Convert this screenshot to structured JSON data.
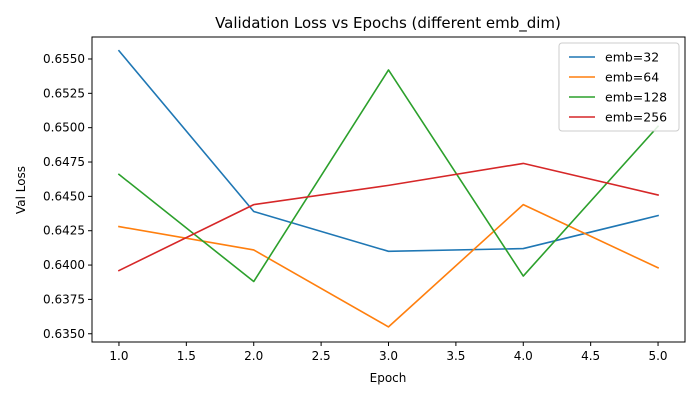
{
  "chart_data": {
    "type": "line",
    "title": "Validation Loss vs Epochs (different emb_dim)",
    "xlabel": "Epoch",
    "ylabel": "Val Loss",
    "x": [
      1,
      2,
      3,
      4,
      5
    ],
    "xlim": [
      0.8,
      5.2
    ],
    "ylim": [
      0.6344,
      0.6566
    ],
    "xticks": [
      1.0,
      1.5,
      2.0,
      2.5,
      3.0,
      3.5,
      4.0,
      4.5,
      5.0
    ],
    "xtick_labels": [
      "1.0",
      "1.5",
      "2.0",
      "2.5",
      "3.0",
      "3.5",
      "4.0",
      "4.5",
      "5.0"
    ],
    "yticks": [
      0.635,
      0.6375,
      0.64,
      0.6425,
      0.645,
      0.6475,
      0.65,
      0.6525,
      0.655
    ],
    "ytick_labels": [
      "0.6350",
      "0.6375",
      "0.6400",
      "0.6425",
      "0.6450",
      "0.6475",
      "0.6500",
      "0.6525",
      "0.6550"
    ],
    "grid": false,
    "legend_position": "top-right",
    "series": [
      {
        "name": "emb=32",
        "color": "#1f77b4",
        "values": [
          0.6556,
          0.6439,
          0.641,
          0.6412,
          0.6436
        ]
      },
      {
        "name": "emb=64",
        "color": "#ff7f0e",
        "values": [
          0.6428,
          0.6411,
          0.6355,
          0.6444,
          0.6398
        ]
      },
      {
        "name": "emb=128",
        "color": "#2ca02c",
        "values": [
          0.6466,
          0.6388,
          0.6542,
          0.6392,
          0.6501
        ]
      },
      {
        "name": "emb=256",
        "color": "#d62728",
        "values": [
          0.6396,
          0.6444,
          0.6458,
          0.6474,
          0.6451
        ]
      }
    ]
  }
}
